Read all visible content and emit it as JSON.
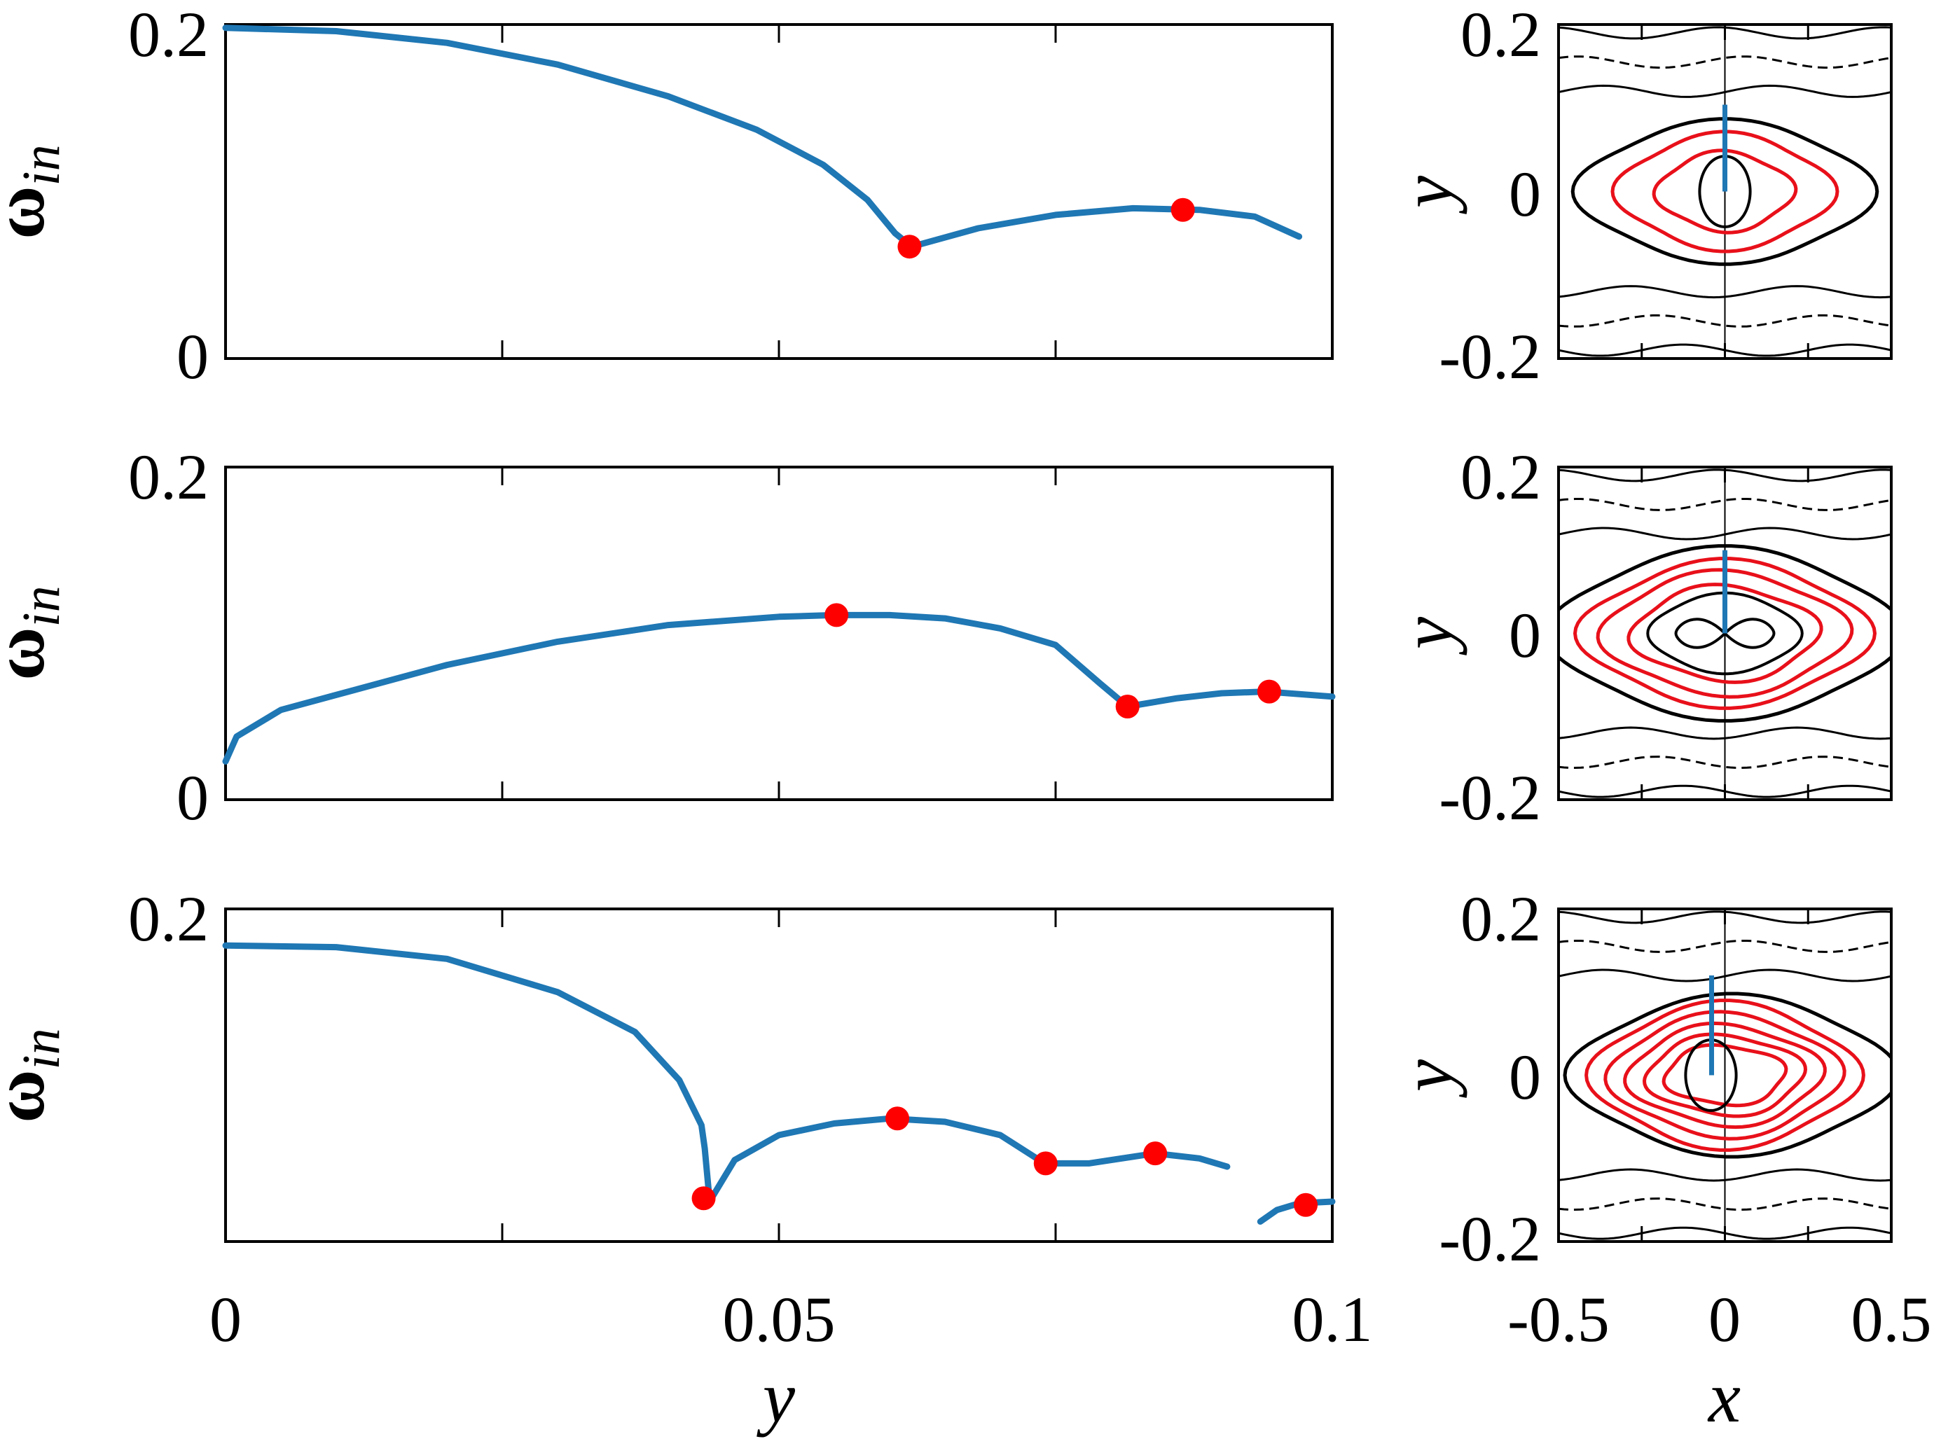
{
  "figure": {
    "colors": {
      "curve": "#1f77b4",
      "marker": "#ff0000",
      "contour": "#000000",
      "highlight_contour": "#e8101a",
      "axes": "#000000"
    }
  },
  "chart_data": [
    {
      "type": "scatter",
      "panel": "row1-left",
      "ylabel_symbol": "ω",
      "ylabel_sub": "in",
      "xlabel": "",
      "xlim": [
        0,
        0.1
      ],
      "ylim": [
        0,
        0.2
      ],
      "ytick_labels": [
        "0",
        "0.2"
      ],
      "xticks": [
        0,
        0.025,
        0.05,
        0.075,
        0.1
      ],
      "series": [
        {
          "name": "omega_in",
          "segments": [
            [
              [
                0,
                0.198
              ],
              [
                0.01,
                0.196
              ],
              [
                0.02,
                0.189
              ],
              [
                0.03,
                0.176
              ],
              [
                0.04,
                0.157
              ],
              [
                0.048,
                0.137
              ],
              [
                0.054,
                0.116
              ],
              [
                0.058,
                0.095
              ],
              [
                0.0605,
                0.075
              ],
              [
                0.062,
                0.067
              ],
              [
                0.068,
                0.078
              ],
              [
                0.075,
                0.086
              ],
              [
                0.082,
                0.09
              ],
              [
                0.088,
                0.089
              ],
              [
                0.093,
                0.085
              ],
              [
                0.097,
                0.073
              ]
            ]
          ]
        },
        {
          "name": "markers",
          "points": [
            [
              0.0618,
              0.067
            ],
            [
              0.0865,
              0.089
            ]
          ]
        }
      ]
    },
    {
      "type": "scatter",
      "panel": "row2-left",
      "ylabel_symbol": "ω",
      "ylabel_sub": "in",
      "xlabel": "",
      "xlim": [
        0,
        0.1
      ],
      "ylim": [
        0,
        0.2
      ],
      "ytick_labels": [
        "0",
        "0.2"
      ],
      "xticks": [
        0,
        0.025,
        0.05,
        0.075,
        0.1
      ],
      "series": [
        {
          "name": "omega_in",
          "segments": [
            [
              [
                0,
                0.023
              ],
              [
                0.001,
                0.038
              ],
              [
                0.005,
                0.054
              ],
              [
                0.01,
                0.063
              ],
              [
                0.02,
                0.081
              ],
              [
                0.03,
                0.095
              ],
              [
                0.04,
                0.105
              ],
              [
                0.05,
                0.11
              ],
              [
                0.055,
                0.111
              ],
              [
                0.06,
                0.111
              ],
              [
                0.065,
                0.109
              ],
              [
                0.07,
                0.103
              ],
              [
                0.075,
                0.093
              ],
              [
                0.079,
                0.07
              ],
              [
                0.0815,
                0.056
              ],
              [
                0.086,
                0.061
              ],
              [
                0.09,
                0.064
              ],
              [
                0.094,
                0.065
              ],
              [
                0.1,
                0.062
              ]
            ]
          ]
        },
        {
          "name": "markers",
          "points": [
            [
              0.0552,
              0.111
            ],
            [
              0.0815,
              0.056
            ],
            [
              0.0943,
              0.065
            ]
          ]
        }
      ]
    },
    {
      "type": "scatter",
      "panel": "row3-left",
      "ylabel_symbol": "ω",
      "ylabel_sub": "in",
      "xlabel": "y",
      "xlim": [
        0,
        0.1
      ],
      "ylim": [
        0,
        0.2
      ],
      "ytick_labels": [
        "0",
        "0.2"
      ],
      "xtick_labels": [
        "0",
        "0.05",
        "0.1"
      ],
      "xtick_label_values": [
        0,
        0.05,
        0.1
      ],
      "xticks": [
        0,
        0.025,
        0.05,
        0.075,
        0.1
      ],
      "series": [
        {
          "name": "omega_in",
          "segments": [
            [
              [
                0,
                0.178
              ],
              [
                0.01,
                0.177
              ],
              [
                0.02,
                0.17
              ],
              [
                0.03,
                0.15
              ],
              [
                0.037,
                0.126
              ],
              [
                0.041,
                0.097
              ],
              [
                0.043,
                0.07
              ],
              [
                0.0433,
                0.056
              ],
              [
                0.0437,
                0.027
              ]
            ],
            [
              [
                0.044,
                0.027
              ],
              [
                0.046,
                0.049
              ],
              [
                0.05,
                0.064
              ],
              [
                0.055,
                0.071
              ],
              [
                0.06,
                0.074
              ],
              [
                0.065,
                0.072
              ],
              [
                0.07,
                0.064
              ],
              [
                0.074,
                0.047
              ],
              [
                0.078,
                0.047
              ],
              [
                0.084,
                0.053
              ],
              [
                0.088,
                0.05
              ],
              [
                0.0905,
                0.045
              ]
            ],
            [
              [
                0.0935,
                0.012
              ],
              [
                0.095,
                0.019
              ],
              [
                0.097,
                0.023
              ],
              [
                0.1,
                0.024
              ]
            ]
          ]
        },
        {
          "name": "markers",
          "points": [
            [
              0.0432,
              0.026
            ],
            [
              0.0607,
              0.074
            ],
            [
              0.0741,
              0.047
            ],
            [
              0.084,
              0.053
            ],
            [
              0.0976,
              0.022
            ]
          ]
        }
      ]
    },
    {
      "type": "contour",
      "panel": "row1-right",
      "xlim": [
        -0.5,
        0.5
      ],
      "ylim": [
        -0.2,
        0.2
      ],
      "ytick_labels": [
        "0.2",
        "0",
        "-0.2"
      ],
      "ylabel": "y",
      "xlabel": "",
      "segment_x": 0,
      "segment_y": [
        0,
        0.104
      ]
    },
    {
      "type": "contour",
      "panel": "row2-right",
      "xlim": [
        -0.5,
        0.5
      ],
      "ylim": [
        -0.2,
        0.2
      ],
      "ytick_labels": [
        "0.2",
        "0",
        "-0.2"
      ],
      "ylabel": "y",
      "xlabel": "",
      "segment_x": 0,
      "segment_y": [
        0,
        0.1
      ]
    },
    {
      "type": "contour",
      "panel": "row3-right",
      "xlim": [
        -0.5,
        0.5
      ],
      "ylim": [
        -0.2,
        0.2
      ],
      "ytick_labels": [
        "0.2",
        "0",
        "-0.2"
      ],
      "ylabel": "y",
      "xlabel": "x",
      "xtick_labels": [
        "-0.5",
        "0",
        "0.5"
      ],
      "segment_x": -0.04,
      "segment_y": [
        0,
        0.12
      ]
    }
  ]
}
